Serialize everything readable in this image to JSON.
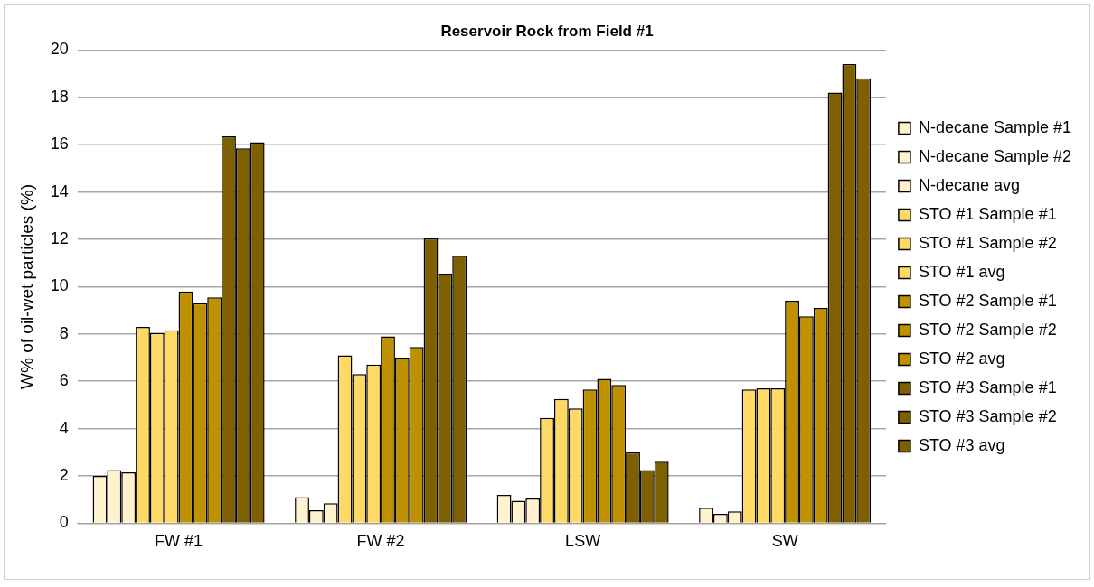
{
  "chart_data": {
    "type": "bar",
    "title": "Reservoir Rock from Field #1",
    "ylabel": "W% of oil-wet particles (%)",
    "categories": [
      "FW #1",
      "FW #2",
      "LSW",
      "SW"
    ],
    "series": [
      {
        "name": "N-decane Sample #1",
        "color": "#fff2cc",
        "values": [
          2.0,
          1.1,
          1.2,
          0.65
        ]
      },
      {
        "name": "N-decane Sample #2",
        "color": "#fff2cc",
        "values": [
          2.25,
          0.55,
          0.95,
          0.4
        ]
      },
      {
        "name": "N-decane avg",
        "color": "#fff2cc",
        "values": [
          2.15,
          0.85,
          1.05,
          0.5
        ]
      },
      {
        "name": "STO #1 Sample #1",
        "color": "#ffd966",
        "values": [
          8.3,
          7.1,
          4.45,
          5.65
        ]
      },
      {
        "name": "STO #1 Sample #2",
        "color": "#ffd966",
        "values": [
          8.05,
          6.3,
          5.25,
          5.7
        ]
      },
      {
        "name": "STO #1 avg",
        "color": "#ffd966",
        "values": [
          8.15,
          6.7,
          4.85,
          5.7
        ]
      },
      {
        "name": "STO #2 Sample #1",
        "color": "#bf9000",
        "values": [
          9.8,
          7.9,
          5.65,
          9.4
        ]
      },
      {
        "name": "STO #2 Sample #2",
        "color": "#bf9000",
        "values": [
          9.3,
          7.0,
          6.1,
          8.75
        ]
      },
      {
        "name": "STO #2 avg",
        "color": "#bf9000",
        "values": [
          9.55,
          7.45,
          5.85,
          9.1
        ]
      },
      {
        "name": "STO #3 Sample #1",
        "color": "#7f6000",
        "values": [
          16.35,
          12.05,
          3.0,
          18.2
        ]
      },
      {
        "name": "STO #3 Sample #2",
        "color": "#7f6000",
        "values": [
          15.85,
          10.55,
          2.25,
          19.4
        ]
      },
      {
        "name": "STO #3 avg",
        "color": "#7f6000",
        "values": [
          16.1,
          11.3,
          2.6,
          18.8
        ]
      }
    ],
    "ylim": [
      0,
      20
    ],
    "yticks": [
      0,
      2,
      4,
      6,
      8,
      10,
      12,
      14,
      16,
      18,
      20
    ],
    "grid": "y",
    "legend": "right"
  }
}
